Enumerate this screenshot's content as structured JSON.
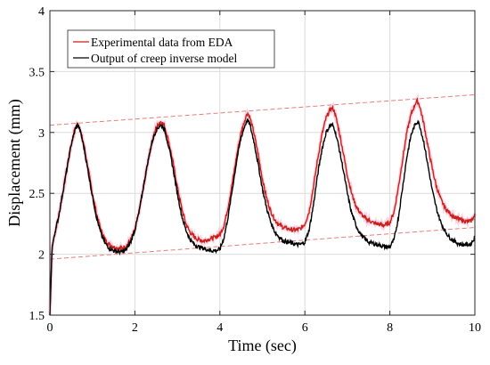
{
  "chart_data": {
    "type": "line",
    "xlabel": "Time (sec)",
    "ylabel": "Displacement (mm)",
    "xlim": [
      0,
      10
    ],
    "ylim": [
      1.5,
      4
    ],
    "x_ticks": [
      0,
      2,
      4,
      6,
      8,
      10
    ],
    "y_ticks": [
      1.5,
      2,
      2.5,
      3,
      3.5,
      4
    ],
    "x_tick_labels": [
      "0",
      "2",
      "4",
      "6",
      "8",
      "10"
    ],
    "y_tick_labels": [
      "1.5",
      "2",
      "2.5",
      "3",
      "3.5",
      "4"
    ],
    "grid": true,
    "legend_position": "top-left",
    "series": [
      {
        "name": "Experimental data from EDA",
        "color": "#cc1f1a",
        "x": [
          0,
          0.05,
          0.1,
          0.2,
          0.3,
          0.4,
          0.5,
          0.6,
          0.65,
          0.7,
          0.8,
          0.9,
          1.0,
          1.1,
          1.2,
          1.3,
          1.4,
          1.5,
          1.6,
          1.7,
          1.8,
          1.9,
          2.0,
          2.1,
          2.2,
          2.3,
          2.4,
          2.5,
          2.6,
          2.65,
          2.7,
          2.8,
          2.9,
          3.0,
          3.1,
          3.2,
          3.3,
          3.4,
          3.5,
          3.6,
          3.7,
          3.8,
          3.9,
          4.0,
          4.1,
          4.2,
          4.3,
          4.4,
          4.5,
          4.6,
          4.65,
          4.7,
          4.8,
          4.9,
          5.0,
          5.1,
          5.2,
          5.3,
          5.4,
          5.5,
          5.6,
          5.7,
          5.8,
          5.9,
          6.0,
          6.1,
          6.2,
          6.3,
          6.4,
          6.5,
          6.6,
          6.65,
          6.7,
          6.8,
          6.9,
          7.0,
          7.1,
          7.2,
          7.3,
          7.4,
          7.5,
          7.6,
          7.7,
          7.8,
          7.9,
          8.0,
          8.1,
          8.2,
          8.3,
          8.4,
          8.5,
          8.6,
          8.65,
          8.7,
          8.8,
          8.9,
          9.0,
          9.1,
          9.2,
          9.3,
          9.4,
          9.5,
          9.6,
          9.7,
          9.8,
          9.9,
          10.0
        ],
        "y": [
          1.5,
          2.05,
          2.15,
          2.3,
          2.5,
          2.7,
          2.9,
          3.04,
          3.07,
          3.04,
          2.9,
          2.7,
          2.5,
          2.33,
          2.2,
          2.12,
          2.08,
          2.06,
          2.05,
          2.05,
          2.07,
          2.12,
          2.2,
          2.35,
          2.55,
          2.75,
          2.92,
          3.04,
          3.09,
          3.08,
          3.05,
          2.92,
          2.75,
          2.55,
          2.38,
          2.25,
          2.18,
          2.14,
          2.12,
          2.11,
          2.12,
          2.13,
          2.14,
          2.16,
          2.24,
          2.4,
          2.6,
          2.82,
          3.0,
          3.12,
          3.16,
          3.13,
          3.0,
          2.82,
          2.62,
          2.46,
          2.35,
          2.28,
          2.24,
          2.22,
          2.21,
          2.2,
          2.2,
          2.21,
          2.25,
          2.35,
          2.55,
          2.78,
          2.98,
          3.12,
          3.19,
          3.2,
          3.17,
          3.02,
          2.84,
          2.65,
          2.5,
          2.4,
          2.34,
          2.3,
          2.28,
          2.26,
          2.25,
          2.24,
          2.24,
          2.26,
          2.35,
          2.55,
          2.78,
          3.0,
          3.15,
          3.24,
          3.26,
          3.22,
          3.07,
          2.88,
          2.7,
          2.55,
          2.45,
          2.38,
          2.34,
          2.31,
          2.29,
          2.28,
          2.27,
          2.27,
          2.32
        ]
      },
      {
        "name": "Output of creep inverse model",
        "color": "#000000",
        "x": [
          0,
          0.05,
          0.1,
          0.2,
          0.3,
          0.4,
          0.5,
          0.6,
          0.65,
          0.7,
          0.8,
          0.9,
          1.0,
          1.1,
          1.2,
          1.3,
          1.4,
          1.5,
          1.6,
          1.7,
          1.8,
          1.9,
          2.0,
          2.1,
          2.2,
          2.3,
          2.4,
          2.5,
          2.6,
          2.65,
          2.7,
          2.8,
          2.9,
          3.0,
          3.1,
          3.2,
          3.3,
          3.4,
          3.5,
          3.6,
          3.7,
          3.8,
          3.9,
          4.0,
          4.1,
          4.2,
          4.3,
          4.4,
          4.5,
          4.6,
          4.65,
          4.7,
          4.8,
          4.9,
          5.0,
          5.1,
          5.2,
          5.3,
          5.4,
          5.5,
          5.6,
          5.7,
          5.8,
          5.9,
          6.0,
          6.1,
          6.2,
          6.3,
          6.4,
          6.5,
          6.6,
          6.65,
          6.7,
          6.8,
          6.9,
          7.0,
          7.1,
          7.2,
          7.3,
          7.4,
          7.5,
          7.6,
          7.7,
          7.8,
          7.9,
          8.0,
          8.1,
          8.2,
          8.3,
          8.4,
          8.5,
          8.6,
          8.65,
          8.7,
          8.8,
          8.9,
          9.0,
          9.1,
          9.2,
          9.3,
          9.4,
          9.5,
          9.6,
          9.7,
          9.8,
          9.9,
          10.0
        ],
        "y": [
          1.5,
          2.05,
          2.15,
          2.3,
          2.5,
          2.7,
          2.9,
          3.03,
          3.06,
          3.03,
          2.88,
          2.68,
          2.48,
          2.3,
          2.17,
          2.09,
          2.05,
          2.03,
          2.02,
          2.02,
          2.04,
          2.1,
          2.2,
          2.35,
          2.55,
          2.75,
          2.92,
          3.02,
          3.06,
          3.05,
          3.02,
          2.88,
          2.7,
          2.5,
          2.32,
          2.2,
          2.12,
          2.08,
          2.06,
          2.05,
          2.04,
          2.03,
          2.03,
          2.04,
          2.14,
          2.32,
          2.55,
          2.78,
          2.96,
          3.07,
          3.1,
          3.07,
          2.93,
          2.74,
          2.54,
          2.38,
          2.26,
          2.18,
          2.14,
          2.11,
          2.1,
          2.09,
          2.08,
          2.08,
          2.1,
          2.2,
          2.4,
          2.65,
          2.86,
          3.0,
          3.06,
          3.06,
          3.03,
          2.88,
          2.7,
          2.5,
          2.34,
          2.24,
          2.17,
          2.13,
          2.1,
          2.09,
          2.08,
          2.07,
          2.06,
          2.06,
          2.12,
          2.3,
          2.55,
          2.8,
          2.98,
          3.07,
          3.09,
          3.06,
          2.92,
          2.72,
          2.52,
          2.37,
          2.26,
          2.19,
          2.14,
          2.11,
          2.09,
          2.08,
          2.08,
          2.08,
          2.14
        ]
      }
    ],
    "trend_lines": [
      {
        "color": "#e87c7c",
        "x": [
          0,
          10
        ],
        "y": [
          3.06,
          3.31
        ]
      },
      {
        "color": "#e87c7c",
        "x": [
          0,
          10
        ],
        "y": [
          1.96,
          2.22
        ]
      }
    ]
  }
}
